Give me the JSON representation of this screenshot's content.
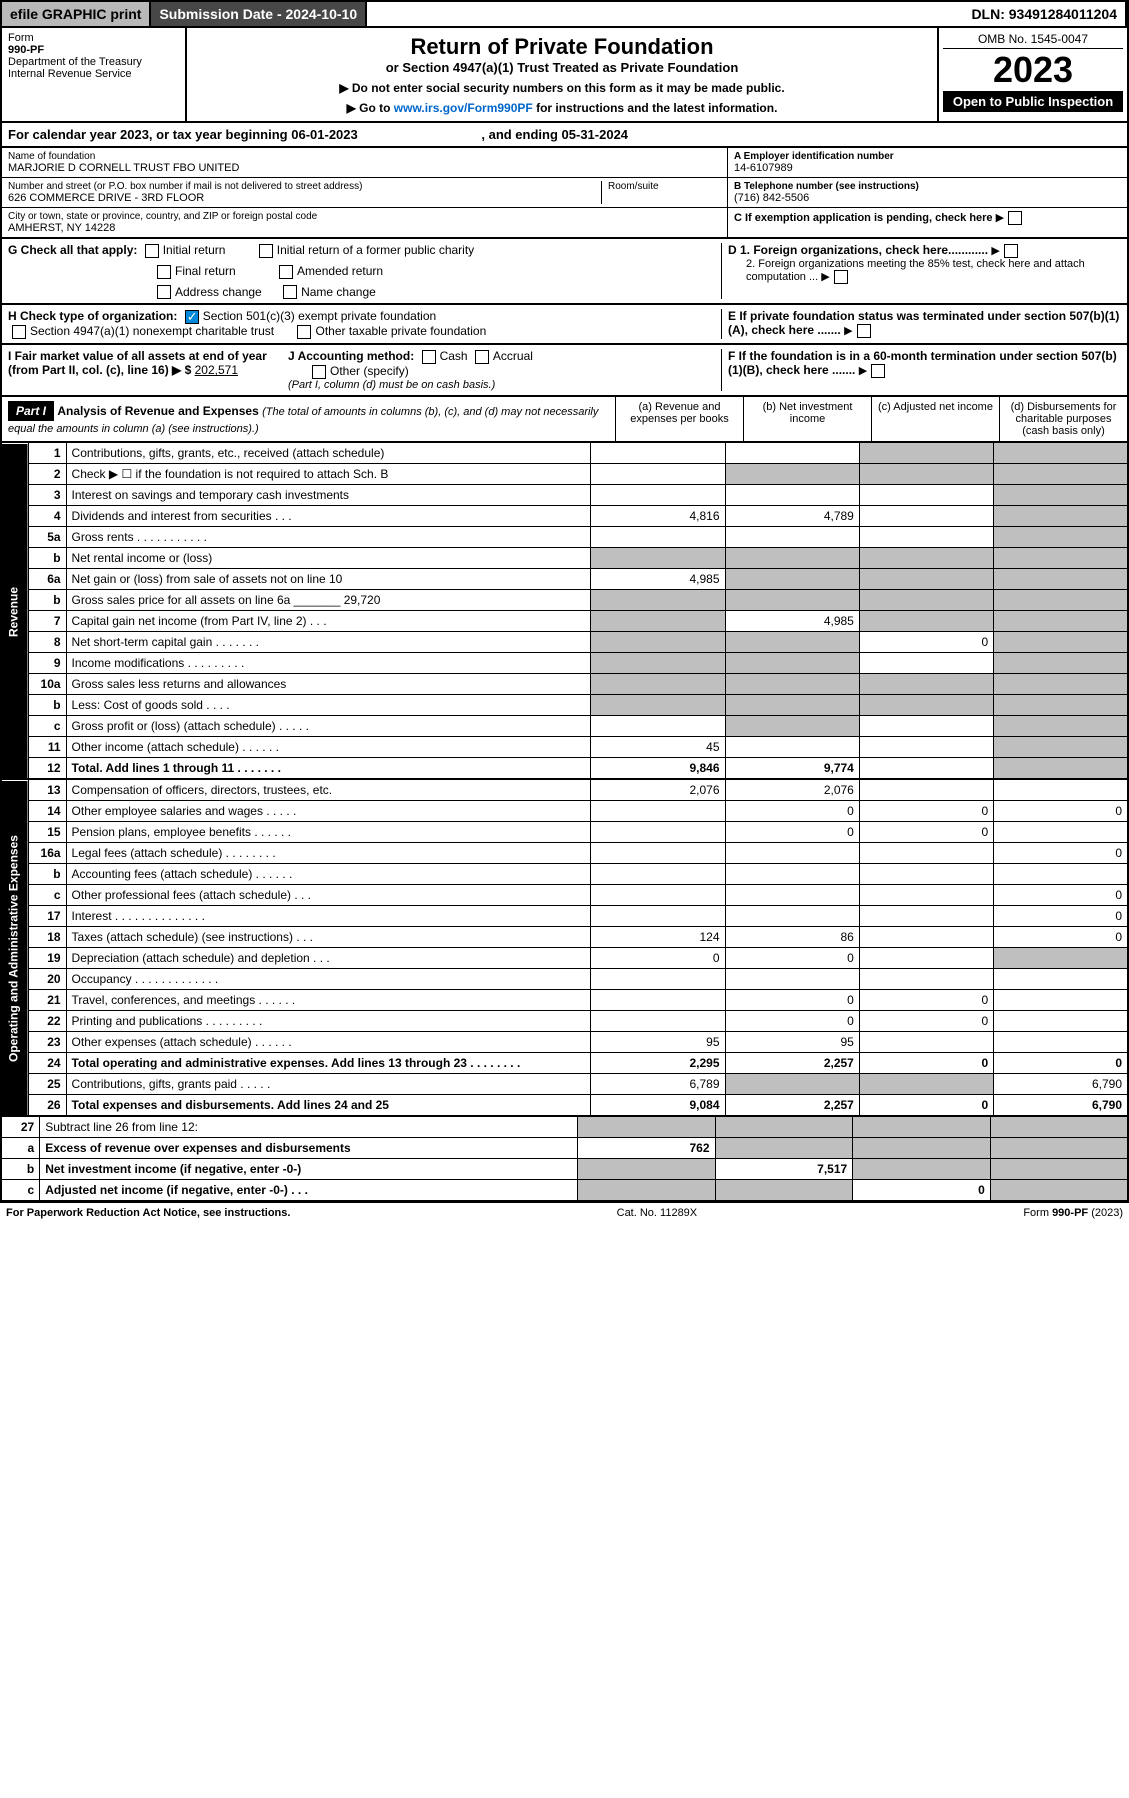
{
  "topbar": {
    "efile": "efile GRAPHIC print",
    "subdate_label": "Submission Date - ",
    "subdate": "2024-10-10",
    "dln_label": "DLN: ",
    "dln": "93491284011204"
  },
  "header": {
    "form_label": "Form",
    "form_num": "990-PF",
    "dept": "Department of the Treasury",
    "irs": "Internal Revenue Service",
    "title": "Return of Private Foundation",
    "subtitle": "or Section 4947(a)(1) Trust Treated as Private Foundation",
    "inst1": "▶ Do not enter social security numbers on this form as it may be made public.",
    "inst2": "▶ Go to ",
    "inst2_link": "www.irs.gov/Form990PF",
    "inst2_end": " for instructions and the latest information.",
    "omb": "OMB No. 1545-0047",
    "year": "2023",
    "inspect": "Open to Public Inspection"
  },
  "calyear": {
    "prefix": "For calendar year 2023, or tax year beginning ",
    "begin": "06-01-2023",
    "mid": " , and ending ",
    "end": "05-31-2024"
  },
  "info": {
    "name_lbl": "Name of foundation",
    "name": "MARJORIE D CORNELL TRUST FBO UNITED",
    "addr_lbl": "Number and street (or P.O. box number if mail is not delivered to street address)",
    "addr": "626 COMMERCE DRIVE - 3RD FLOOR",
    "room_lbl": "Room/suite",
    "city_lbl": "City or town, state or province, country, and ZIP or foreign postal code",
    "city": "AMHERST, NY  14228",
    "ein_lbl": "A Employer identification number",
    "ein": "14-6107989",
    "tel_lbl": "B Telephone number (see instructions)",
    "tel": "(716) 842-5506",
    "c_lbl": "C If exemption application is pending, check here",
    "d1": "D 1. Foreign organizations, check here............",
    "d2": "2. Foreign organizations meeting the 85% test, check here and attach computation ...",
    "e_lbl": "E If private foundation status was terminated under section 507(b)(1)(A), check here .......",
    "f_lbl": "F If the foundation is in a 60-month termination under section 507(b)(1)(B), check here .......",
    "g_lbl": "G Check all that apply:",
    "g_initial": "Initial return",
    "g_initial_former": "Initial return of a former public charity",
    "g_final": "Final return",
    "g_amended": "Amended return",
    "g_addr": "Address change",
    "g_name": "Name change",
    "h_lbl": "H Check type of organization:",
    "h_501": "Section 501(c)(3) exempt private foundation",
    "h_4947": "Section 4947(a)(1) nonexempt charitable trust",
    "h_other": "Other taxable private foundation",
    "i_lbl": "I Fair market value of all assets at end of year (from Part II, col. (c), line 16) ▶ $",
    "i_val": "202,571",
    "j_lbl": "J Accounting method:",
    "j_cash": "Cash",
    "j_accrual": "Accrual",
    "j_other": "Other (specify)",
    "j_note": "(Part I, column (d) must be on cash basis.)"
  },
  "part1": {
    "label": "Part I",
    "title": "Analysis of Revenue and Expenses",
    "title_note": " (The total of amounts in columns (b), (c), and (d) may not necessarily equal the amounts in column (a) (see instructions).)",
    "col_a": "(a) Revenue and expenses per books",
    "col_b": "(b) Net investment income",
    "col_c": "(c) Adjusted net income",
    "col_d": "(d) Disbursements for charitable purposes (cash basis only)"
  },
  "side_labels": {
    "revenue": "Revenue",
    "expenses": "Operating and Administrative Expenses"
  },
  "rows": [
    {
      "n": "1",
      "d": "Contributions, gifts, grants, etc., received (attach schedule)",
      "a": "",
      "b": "",
      "c": "g",
      "dd": "g"
    },
    {
      "n": "2",
      "d": "Check ▶ ☐ if the foundation is not required to attach Sch. B",
      "a": "",
      "b": "g",
      "c": "g",
      "dd": "g",
      "bold": false
    },
    {
      "n": "3",
      "d": "Interest on savings and temporary cash investments",
      "a": "",
      "b": "",
      "c": "",
      "dd": "g"
    },
    {
      "n": "4",
      "d": "Dividends and interest from securities  .  .  .",
      "a": "4,816",
      "b": "4,789",
      "c": "",
      "dd": "g"
    },
    {
      "n": "5a",
      "d": "Gross rents  .  .  .  .  .  .  .  .  .  .  .",
      "a": "",
      "b": "",
      "c": "",
      "dd": "g"
    },
    {
      "n": "b",
      "d": "Net rental income or (loss)",
      "a": "g",
      "b": "g",
      "c": "g",
      "dd": "g"
    },
    {
      "n": "6a",
      "d": "Net gain or (loss) from sale of assets not on line 10",
      "a": "4,985",
      "b": "g",
      "c": "g",
      "dd": "g"
    },
    {
      "n": "b",
      "d": "Gross sales price for all assets on line 6a _______ 29,720",
      "a": "g",
      "b": "g",
      "c": "g",
      "dd": "g"
    },
    {
      "n": "7",
      "d": "Capital gain net income (from Part IV, line 2)  .  .  .",
      "a": "g",
      "b": "4,985",
      "c": "g",
      "dd": "g"
    },
    {
      "n": "8",
      "d": "Net short-term capital gain  .  .  .  .  .  .  .",
      "a": "g",
      "b": "g",
      "c": "0",
      "dd": "g"
    },
    {
      "n": "9",
      "d": "Income modifications  .  .  .  .  .  .  .  .  .",
      "a": "g",
      "b": "g",
      "c": "",
      "dd": "g"
    },
    {
      "n": "10a",
      "d": "Gross sales less returns and allowances",
      "a": "g",
      "b": "g",
      "c": "g",
      "dd": "g"
    },
    {
      "n": "b",
      "d": "Less: Cost of goods sold  .  .  .  .",
      "a": "g",
      "b": "g",
      "c": "g",
      "dd": "g"
    },
    {
      "n": "c",
      "d": "Gross profit or (loss) (attach schedule)  .  .  .  .  .",
      "a": "",
      "b": "g",
      "c": "",
      "dd": "g"
    },
    {
      "n": "11",
      "d": "Other income (attach schedule)  .  .  .  .  .  .",
      "a": "45",
      "b": "",
      "c": "",
      "dd": "g"
    },
    {
      "n": "12",
      "d": "Total. Add lines 1 through 11  .  .  .  .  .  .  .",
      "a": "9,846",
      "b": "9,774",
      "c": "",
      "dd": "g",
      "bold": true
    }
  ],
  "exp_rows": [
    {
      "n": "13",
      "d": "Compensation of officers, directors, trustees, etc.",
      "a": "2,076",
      "b": "2,076",
      "c": "",
      "dd": ""
    },
    {
      "n": "14",
      "d": "Other employee salaries and wages  .  .  .  .  .",
      "a": "",
      "b": "0",
      "c": "0",
      "dd": "0"
    },
    {
      "n": "15",
      "d": "Pension plans, employee benefits  .  .  .  .  .  .",
      "a": "",
      "b": "0",
      "c": "0",
      "dd": ""
    },
    {
      "n": "16a",
      "d": "Legal fees (attach schedule)  .  .  .  .  .  .  .  .",
      "a": "",
      "b": "",
      "c": "",
      "dd": "0"
    },
    {
      "n": "b",
      "d": "Accounting fees (attach schedule)  .  .  .  .  .  .",
      "a": "",
      "b": "",
      "c": "",
      "dd": ""
    },
    {
      "n": "c",
      "d": "Other professional fees (attach schedule)  .  .  .",
      "a": "",
      "b": "",
      "c": "",
      "dd": "0"
    },
    {
      "n": "17",
      "d": "Interest  .  .  .  .  .  .  .  .  .  .  .  .  .  .",
      "a": "",
      "b": "",
      "c": "",
      "dd": "0"
    },
    {
      "n": "18",
      "d": "Taxes (attach schedule) (see instructions)  .  .  .",
      "a": "124",
      "b": "86",
      "c": "",
      "dd": "0"
    },
    {
      "n": "19",
      "d": "Depreciation (attach schedule) and depletion  .  .  .",
      "a": "0",
      "b": "0",
      "c": "",
      "dd": "g"
    },
    {
      "n": "20",
      "d": "Occupancy  .  .  .  .  .  .  .  .  .  .  .  .  .",
      "a": "",
      "b": "",
      "c": "",
      "dd": ""
    },
    {
      "n": "21",
      "d": "Travel, conferences, and meetings  .  .  .  .  .  .",
      "a": "",
      "b": "0",
      "c": "0",
      "dd": ""
    },
    {
      "n": "22",
      "d": "Printing and publications  .  .  .  .  .  .  .  .  .",
      "a": "",
      "b": "0",
      "c": "0",
      "dd": ""
    },
    {
      "n": "23",
      "d": "Other expenses (attach schedule)  .  .  .  .  .  .",
      "a": "95",
      "b": "95",
      "c": "",
      "dd": ""
    },
    {
      "n": "24",
      "d": "Total operating and administrative expenses. Add lines 13 through 23  .  .  .  .  .  .  .  .",
      "a": "2,295",
      "b": "2,257",
      "c": "0",
      "dd": "0",
      "bold": true
    },
    {
      "n": "25",
      "d": "Contributions, gifts, grants paid  .  .  .  .  .",
      "a": "6,789",
      "b": "g",
      "c": "g",
      "dd": "6,790"
    },
    {
      "n": "26",
      "d": "Total expenses and disbursements. Add lines 24 and 25",
      "a": "9,084",
      "b": "2,257",
      "c": "0",
      "dd": "6,790",
      "bold": true
    }
  ],
  "net_rows": [
    {
      "n": "27",
      "d": "Subtract line 26 from line 12:",
      "a": "g",
      "b": "g",
      "c": "g",
      "dd": "g"
    },
    {
      "n": "a",
      "d": "Excess of revenue over expenses and disbursements",
      "a": "762",
      "b": "g",
      "c": "g",
      "dd": "g",
      "bold": true
    },
    {
      "n": "b",
      "d": "Net investment income (if negative, enter -0-)",
      "a": "g",
      "b": "7,517",
      "c": "g",
      "dd": "g",
      "bold": true
    },
    {
      "n": "c",
      "d": "Adjusted net income (if negative, enter -0-)  .  .  .",
      "a": "g",
      "b": "g",
      "c": "0",
      "dd": "g",
      "bold": true
    }
  ],
  "footer": {
    "left": "For Paperwork Reduction Act Notice, see instructions.",
    "mid": "Cat. No. 11289X",
    "right": "Form 990-PF (2023)"
  }
}
